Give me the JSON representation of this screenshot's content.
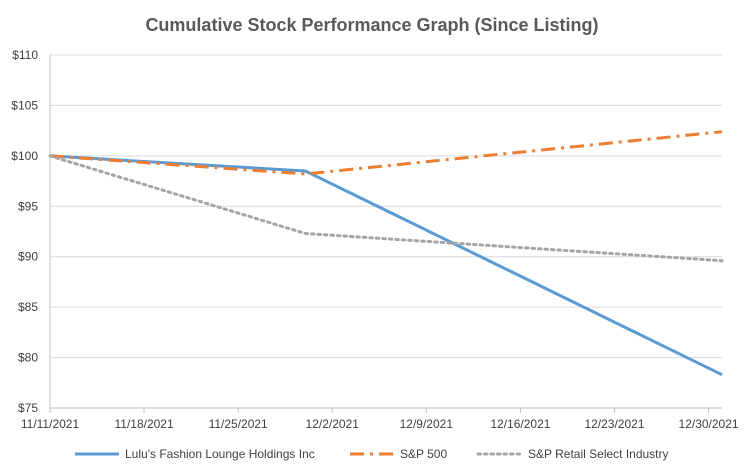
{
  "chart_data": {
    "type": "line",
    "title": "Cumulative Stock Performance Graph (Since Listing)",
    "xlabel": "",
    "ylabel": "",
    "x_tick_labels": [
      "11/11/2021",
      "11/18/2021",
      "11/25/2021",
      "12/2/2021",
      "12/9/2021",
      "12/16/2021",
      "12/23/2021",
      "12/30/2021"
    ],
    "y_tick_labels": [
      "$75",
      "$80",
      "$85",
      "$90",
      "$95",
      "$100",
      "$105",
      "$110"
    ],
    "y_ticks": [
      75,
      80,
      85,
      90,
      95,
      100,
      105,
      110
    ],
    "xlim": [
      "11/11/2021",
      "12/31/2021"
    ],
    "ylim": [
      75,
      110
    ],
    "grid": "horizontal",
    "legend": "bottom",
    "series": [
      {
        "name": "Lulu's Fashion Lounge Holdings Inc",
        "color": "#5B9BD5",
        "style": "solid",
        "points": [
          {
            "x": "11/11/2021",
            "y": 100
          },
          {
            "x": "11/30/2021",
            "y": 98.5
          },
          {
            "x": "12/31/2021",
            "y": 78.3
          }
        ]
      },
      {
        "name": "S&P 500",
        "color": "#ED7D31",
        "style": "dashdot",
        "points": [
          {
            "x": "11/11/2021",
            "y": 100
          },
          {
            "x": "11/30/2021",
            "y": 98.2
          },
          {
            "x": "12/31/2021",
            "y": 102.4
          }
        ]
      },
      {
        "name": "S&P Retail Select Industry",
        "color": "#A5A5A5",
        "style": "dotted",
        "points": [
          {
            "x": "11/11/2021",
            "y": 100
          },
          {
            "x": "11/30/2021",
            "y": 92.3
          },
          {
            "x": "12/31/2021",
            "y": 89.6
          }
        ]
      }
    ]
  }
}
